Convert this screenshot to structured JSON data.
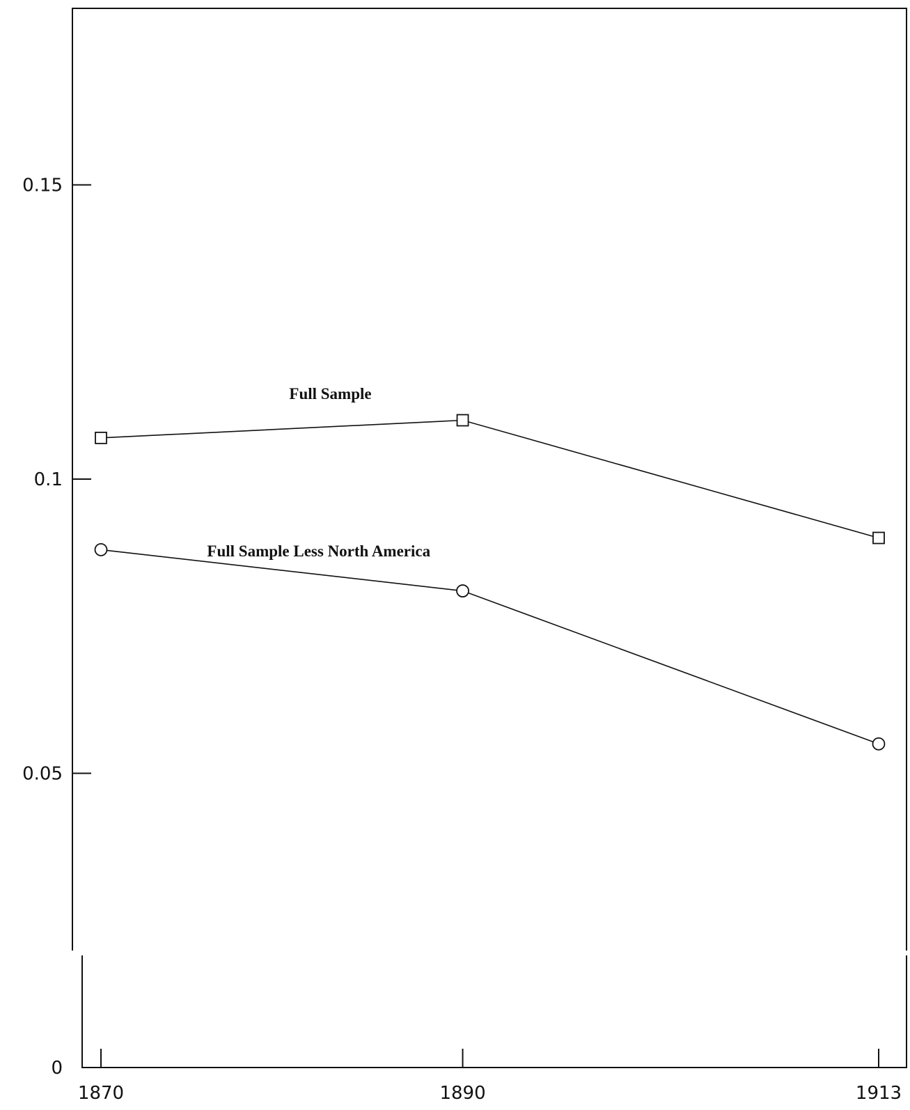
{
  "chart_data": {
    "type": "line",
    "x": [
      1870,
      1890,
      1913
    ],
    "x_ticks": [
      "1870",
      "1890",
      "1913"
    ],
    "y_ticks": [
      "0",
      "0.05",
      "0.1",
      "0.15"
    ],
    "ylim": [
      0,
      0.18
    ],
    "series": [
      {
        "name": "Full Sample",
        "marker": "square",
        "values": [
          0.107,
          0.11,
          0.09
        ]
      },
      {
        "name": "Full Sample Less North America",
        "marker": "circle",
        "values": [
          0.088,
          0.081,
          0.055
        ]
      }
    ],
    "grid": false,
    "legend": "inline labels"
  }
}
